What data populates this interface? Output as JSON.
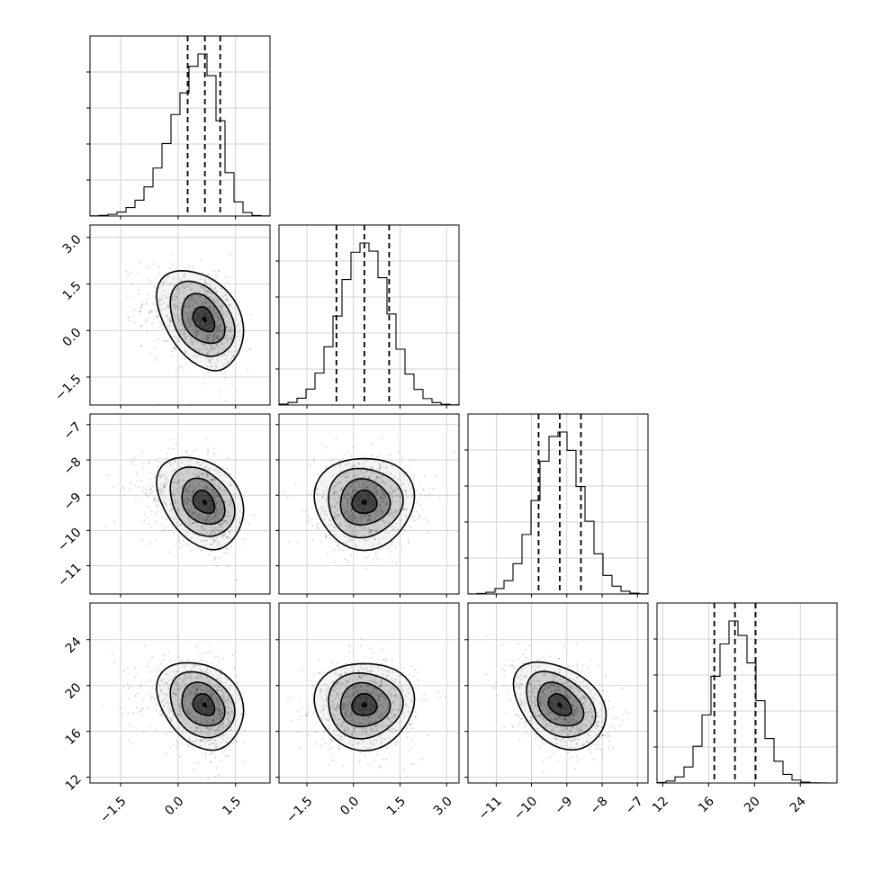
{
  "chart_data": {
    "type": "corner",
    "colors": {
      "points": "#000000",
      "density": "#000000",
      "lines": "#000000",
      "grid": "#c8c8c8"
    },
    "params": [
      {
        "range": [
          -2.3,
          2.4
        ],
        "ticks": [
          -1.5,
          0.0,
          1.5
        ],
        "tick_labels": [
          "−1.5",
          "0.0",
          "1.5"
        ],
        "mean": 0.7,
        "sd": 0.5,
        "skew": -1,
        "quantiles": [
          0.25,
          0.7,
          1.1
        ]
      },
      {
        "range": [
          -2.4,
          3.4
        ],
        "ticks": [
          -1.5,
          0.0,
          1.5,
          3.0
        ],
        "tick_labels": [
          "−1.5",
          "0.0",
          "1.5",
          "3.0"
        ],
        "mean": 0.35,
        "sd": 0.8,
        "skew": 0,
        "quantiles": [
          -0.55,
          0.35,
          1.15
        ]
      },
      {
        "range": [
          -11.8,
          -6.7
        ],
        "ticks": [
          -11,
          -10,
          -9,
          -8,
          -7
        ],
        "tick_labels": [
          "−11",
          "−10",
          "−9",
          "−8",
          "−7"
        ],
        "mean": -9.2,
        "sd": 0.65,
        "skew": 0,
        "quantiles": [
          -9.8,
          -9.2,
          -8.6
        ]
      },
      {
        "range": [
          11.5,
          27.2
        ],
        "ticks": [
          12,
          16,
          20,
          24
        ],
        "tick_labels": [
          "12",
          "16",
          "20",
          "24"
        ],
        "mean": 18.3,
        "sd": 1.9,
        "skew": 0,
        "quantiles": [
          16.5,
          18.3,
          20.1
        ]
      }
    ],
    "correlations": {
      "1_0": -0.35,
      "2_0": -0.3,
      "2_1": 0.0,
      "3_0": -0.25,
      "3_1": 0.0,
      "3_2": -0.35
    }
  }
}
